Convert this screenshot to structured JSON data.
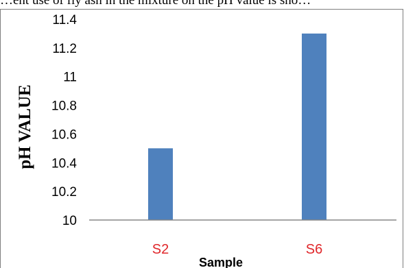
{
  "header_text": "…ent use of fly ash in the mixture on the pH value is sho…",
  "chart_data": {
    "type": "bar",
    "categories": [
      "S2",
      "S6"
    ],
    "values": [
      10.5,
      11.3
    ],
    "title": "",
    "xlabel": "Sample",
    "ylabel": "pH  VALUE",
    "ylim": [
      10,
      11.4
    ],
    "yticks": [
      "10",
      "10.2",
      "10.4",
      "10.6",
      "10.8",
      "11",
      "11.2",
      "11.4"
    ],
    "grid": false,
    "legend": "none",
    "bar_color": "#4f81bd",
    "category_label_color": "#e0262a",
    "axis_color": "#868686"
  }
}
